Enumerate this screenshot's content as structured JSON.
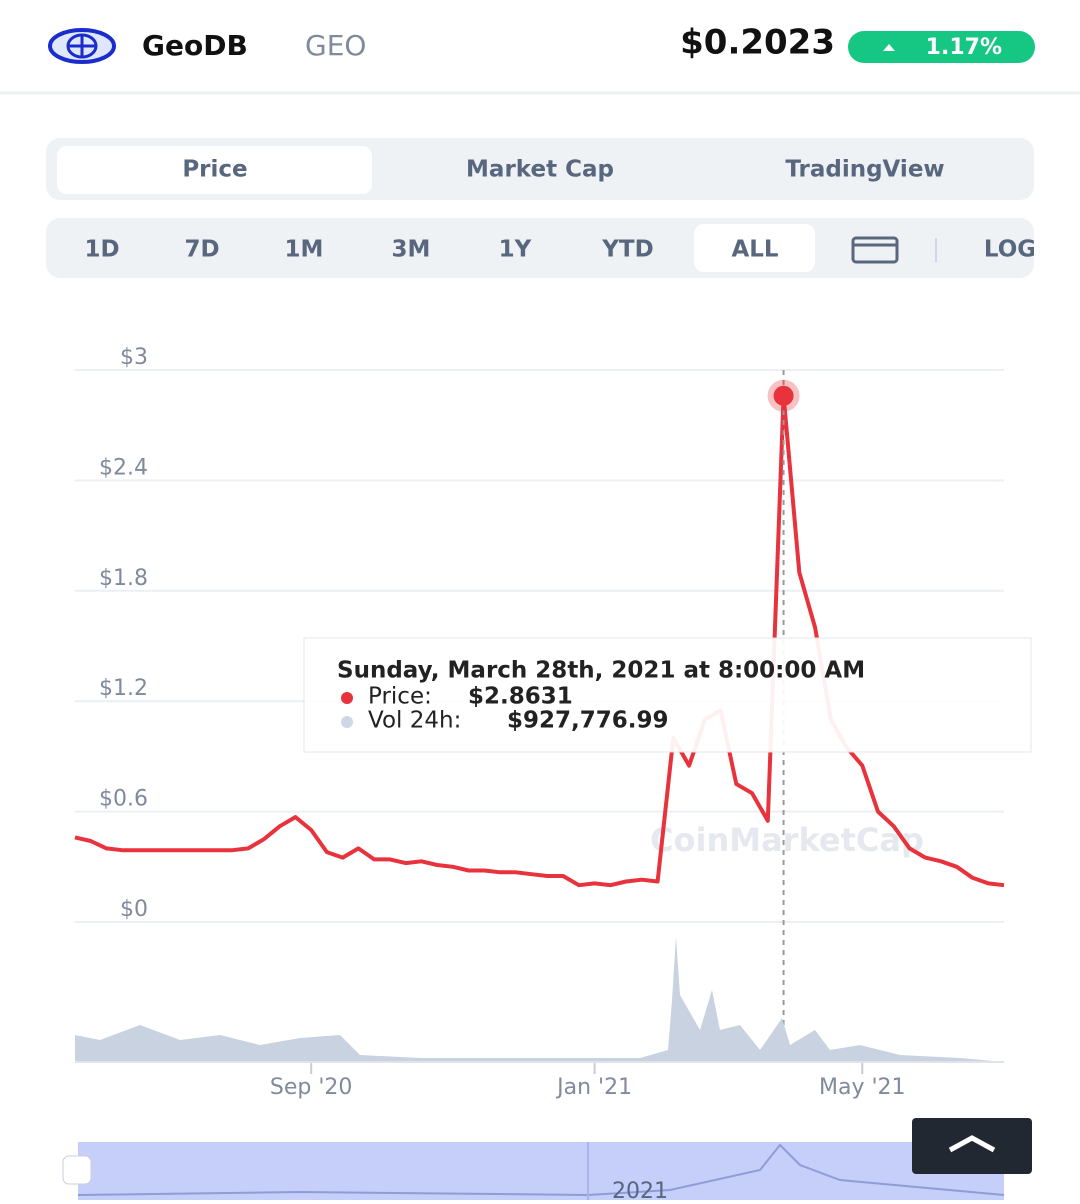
{
  "header": {
    "name": "GeoDB",
    "symbol": "GEO",
    "price": "$0.2023",
    "change": "1.17%"
  },
  "tabs": [
    "Price",
    "Market Cap",
    "TradingView"
  ],
  "ranges": [
    "1D",
    "7D",
    "1M",
    "3M",
    "1Y",
    "YTD",
    "ALL",
    "LOG"
  ],
  "tooltip": {
    "date": "Sunday, March 28th, 2021 at 8:00:00 AM",
    "price_label": "Price:",
    "price": "$2.8631",
    "volume_label": "Vol 24h:",
    "volume": "$927,776.99"
  },
  "watermark": "CoinMarketCap",
  "navigator_label": "2021",
  "chart_data": {
    "type": "line",
    "color": "#e8323c",
    "grid": true,
    "highlight_index": 45,
    "categories": [
      null,
      null,
      null,
      null,
      null,
      null,
      null,
      null,
      null,
      null,
      null,
      null,
      null,
      null,
      null,
      "Sep '20",
      null,
      null,
      null,
      null,
      null,
      null,
      null,
      null,
      null,
      null,
      null,
      null,
      null,
      null,
      null,
      null,
      null,
      "Jan '21",
      null,
      null,
      null,
      null,
      null,
      null,
      null,
      null,
      null,
      null,
      null,
      null,
      null,
      null,
      null,
      null,
      "May '21",
      null,
      null,
      null,
      null,
      null,
      null,
      null,
      null,
      null
    ],
    "values": [
      0.46,
      0.44,
      0.4,
      0.39,
      0.39,
      0.39,
      0.39,
      0.39,
      0.39,
      0.39,
      0.39,
      0.4,
      0.45,
      0.52,
      0.57,
      0.5,
      0.38,
      0.35,
      0.4,
      0.34,
      0.34,
      0.32,
      0.33,
      0.31,
      0.3,
      0.28,
      0.28,
      0.27,
      0.27,
      0.26,
      0.25,
      0.25,
      0.2,
      0.21,
      0.2,
      0.22,
      0.23,
      0.22,
      1.0,
      0.85,
      1.1,
      1.15,
      0.75,
      0.7,
      0.55,
      2.86,
      1.9,
      1.6,
      1.1,
      0.95,
      0.85,
      0.6,
      0.52,
      0.4,
      0.35,
      0.33,
      0.3,
      0.24,
      0.21,
      0.2
    ],
    "ylim": [
      0,
      3
    ],
    "yticks": [
      {
        "value": 0,
        "label": "$0"
      },
      {
        "value": 0.6,
        "label": "$0.6"
      },
      {
        "value": 1.2,
        "label": "$1.2"
      },
      {
        "value": 1.8,
        "label": "$1.8"
      },
      {
        "value": 2.4,
        "label": "$2.4"
      },
      {
        "value": 3,
        "label": "$3"
      }
    ]
  }
}
